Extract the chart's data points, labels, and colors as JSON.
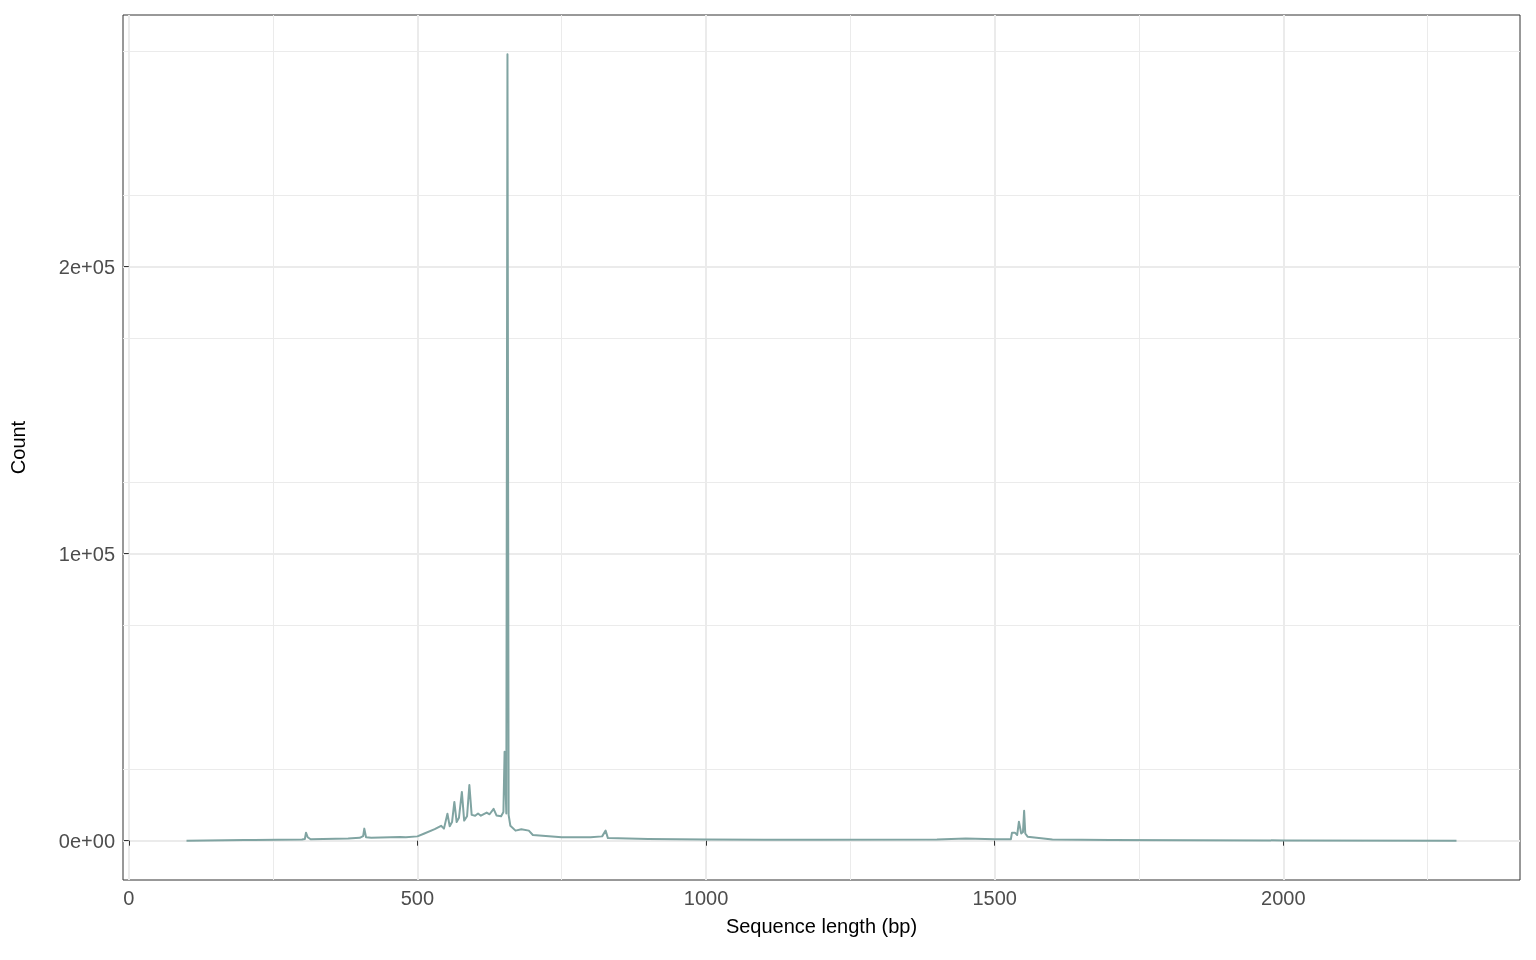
{
  "chart_data": {
    "type": "line",
    "xlabel": "Sequence length (bp)",
    "ylabel": "Count",
    "x": [
      100,
      200,
      300,
      305,
      307,
      310,
      315,
      380,
      400,
      406,
      408,
      411,
      420,
      470,
      480,
      500,
      511,
      530,
      541,
      546,
      552,
      556,
      560,
      564,
      568,
      572,
      577,
      581,
      586,
      590,
      594,
      600,
      605,
      610,
      620,
      625,
      632,
      637,
      645,
      649,
      651,
      654,
      656,
      658,
      661,
      670,
      680,
      693,
      700,
      750,
      800,
      820,
      826,
      830,
      900,
      1000,
      1200,
      1400,
      1450,
      1500,
      1528,
      1530,
      1535,
      1539,
      1542,
      1546,
      1549,
      1551,
      1553,
      1557,
      1600,
      1700,
      2000,
      2300
    ],
    "series": [
      {
        "color": "#80a4a2",
        "values": [
          0,
          200,
          400,
          600,
          2800,
          1200,
          500,
          800,
          1000,
          1600,
          4200,
          1200,
          1000,
          1300,
          1200,
          1500,
          2400,
          4000,
          5200,
          4200,
          9400,
          5000,
          6500,
          13500,
          6500,
          8000,
          17000,
          7000,
          8500,
          19400,
          9000,
          8700,
          9500,
          8700,
          9800,
          9200,
          11100,
          8800,
          8500,
          10000,
          31000,
          9500,
          274000,
          9000,
          5200,
          3500,
          4000,
          3500,
          2000,
          1200,
          1200,
          1500,
          3500,
          900,
          600,
          400,
          300,
          400,
          800,
          500,
          500,
          2800,
          2800,
          2000,
          6600,
          2500,
          3000,
          10400,
          2500,
          1400,
          400,
          200,
          100,
          0
        ]
      }
    ],
    "xlim": [
      -10,
      2410
    ],
    "ylim": [
      -13700,
      287700
    ],
    "xticks": [
      0,
      500,
      1000,
      1500,
      2000
    ],
    "yticks": [
      {
        "value": 0,
        "label": "0e+00"
      },
      {
        "value": 100000,
        "label": "1e+05"
      },
      {
        "value": 200000,
        "label": "2e+05"
      }
    ],
    "grid": true,
    "marker": "none",
    "line_style": "solid"
  }
}
